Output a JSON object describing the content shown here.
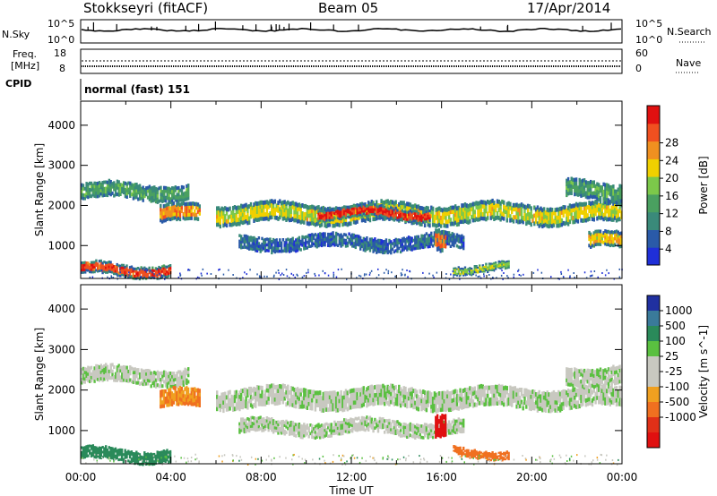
{
  "header": {
    "station": "Stokkseyri (fitACF)",
    "beam": "Beam 05",
    "date": "17/Apr/2014"
  },
  "strip": {
    "nsky_label": "N.Sky",
    "nsky_ticks": [
      "10^5",
      "10^0"
    ],
    "nsearch_label": "N.Search",
    "nsearch_ticks": [
      "10^5",
      "10^0"
    ],
    "freq_label_1": "Freq.",
    "freq_label_2": "[MHz]",
    "freq_ticks": [
      "18",
      "8"
    ],
    "nave_label": "Nave",
    "nave_ticks": [
      "60",
      "0"
    ],
    "cpid_label": "CPID",
    "cpid_value": "normal (fast) 151"
  },
  "colors": {
    "power_scale": [
      "#1f2fd8",
      "#2a5aa8",
      "#3a8a7a",
      "#4aa060",
      "#7cc84a",
      "#f0d000",
      "#f09020",
      "#f05020",
      "#e01010"
    ],
    "velocity_scale": [
      "#2030a0",
      "#3a7a9a",
      "#2a8a5a",
      "#5ac040",
      "#c8c8c0",
      "#c8c8c0",
      "#f0a020",
      "#f07020",
      "#e03018",
      "#e01010"
    ]
  },
  "chart_data": [
    {
      "type": "heatmap",
      "title": "",
      "ylabel": "Slant Range [km]",
      "xlabel": "",
      "xlim": [
        "00:00",
        "00:00"
      ],
      "ylim": [
        180,
        4600
      ],
      "yticks": [
        "1000",
        "2000",
        "3000",
        "4000"
      ],
      "colorbar_label": "Power [dB]",
      "colorbar_ticks": [
        "4",
        "8",
        "12",
        "16",
        "20",
        "24",
        "28"
      ],
      "bands": [
        {
          "start_h": 0.0,
          "end_h": 4.8,
          "range_low_km": 2150,
          "range_high_km": 2550,
          "power_db": 12
        },
        {
          "start_h": 0.0,
          "end_h": 4.0,
          "range_low_km": 250,
          "range_high_km": 550,
          "power_db": 26
        },
        {
          "start_h": 3.5,
          "end_h": 5.3,
          "range_low_km": 1550,
          "range_high_km": 2000,
          "power_db": 22
        },
        {
          "start_h": 6.0,
          "end_h": 24.0,
          "range_low_km": 1550,
          "range_high_km": 2050,
          "power_db": 18
        },
        {
          "start_h": 10.5,
          "end_h": 15.5,
          "range_low_km": 1650,
          "range_high_km": 1950,
          "power_db": 28
        },
        {
          "start_h": 21.5,
          "end_h": 24.0,
          "range_low_km": 2150,
          "range_high_km": 2600,
          "power_db": 12
        },
        {
          "start_h": 7.0,
          "end_h": 17.0,
          "range_low_km": 900,
          "range_high_km": 1250,
          "power_db": 6
        },
        {
          "start_h": 15.7,
          "end_h": 16.2,
          "range_low_km": 800,
          "range_high_km": 1350,
          "power_db": 24
        },
        {
          "start_h": 16.5,
          "end_h": 19.0,
          "range_low_km": 350,
          "range_high_km": 550,
          "power_db": 16
        },
        {
          "start_h": 22.5,
          "end_h": 24.0,
          "range_low_km": 900,
          "range_high_km": 1300,
          "power_db": 20
        }
      ]
    },
    {
      "type": "heatmap",
      "title": "",
      "ylabel": "Slant Range [km]",
      "xlabel": "Time UT",
      "xlim": [
        "00:00",
        "00:00"
      ],
      "ylim": [
        180,
        4600
      ],
      "xticks": [
        "00:00",
        "04:00",
        "08:00",
        "12:00",
        "16:00",
        "20:00",
        "00:00"
      ],
      "yticks": [
        "1000",
        "2000",
        "3000",
        "4000"
      ],
      "colorbar_label": "Velocity [m s^-1]",
      "colorbar_ticks": [
        "1000",
        "500",
        "100",
        "25",
        "-25",
        "-100",
        "-500",
        "-1000"
      ],
      "bands": [
        {
          "start_h": 0.0,
          "end_h": 4.8,
          "range_low_km": 2150,
          "range_high_km": 2550,
          "velocity_ms": 0
        },
        {
          "start_h": 0.0,
          "end_h": 4.0,
          "range_low_km": 250,
          "range_high_km": 550,
          "velocity_ms": 200
        },
        {
          "start_h": 3.5,
          "end_h": 5.3,
          "range_low_km": 1550,
          "range_high_km": 2000,
          "velocity_ms": -300
        },
        {
          "start_h": 6.0,
          "end_h": 24.0,
          "range_low_km": 1550,
          "range_high_km": 2050,
          "velocity_ms": 0
        },
        {
          "start_h": 7.0,
          "end_h": 17.0,
          "range_low_km": 900,
          "range_high_km": 1250,
          "velocity_ms": 0
        },
        {
          "start_h": 15.7,
          "end_h": 16.2,
          "range_low_km": 800,
          "range_high_km": 1350,
          "velocity_ms": -900
        },
        {
          "start_h": 16.5,
          "end_h": 19.0,
          "range_low_km": 350,
          "range_high_km": 550,
          "velocity_ms": -400
        },
        {
          "start_h": 21.5,
          "end_h": 24.0,
          "range_low_km": 2150,
          "range_high_km": 2600,
          "velocity_ms": 0
        }
      ]
    }
  ]
}
